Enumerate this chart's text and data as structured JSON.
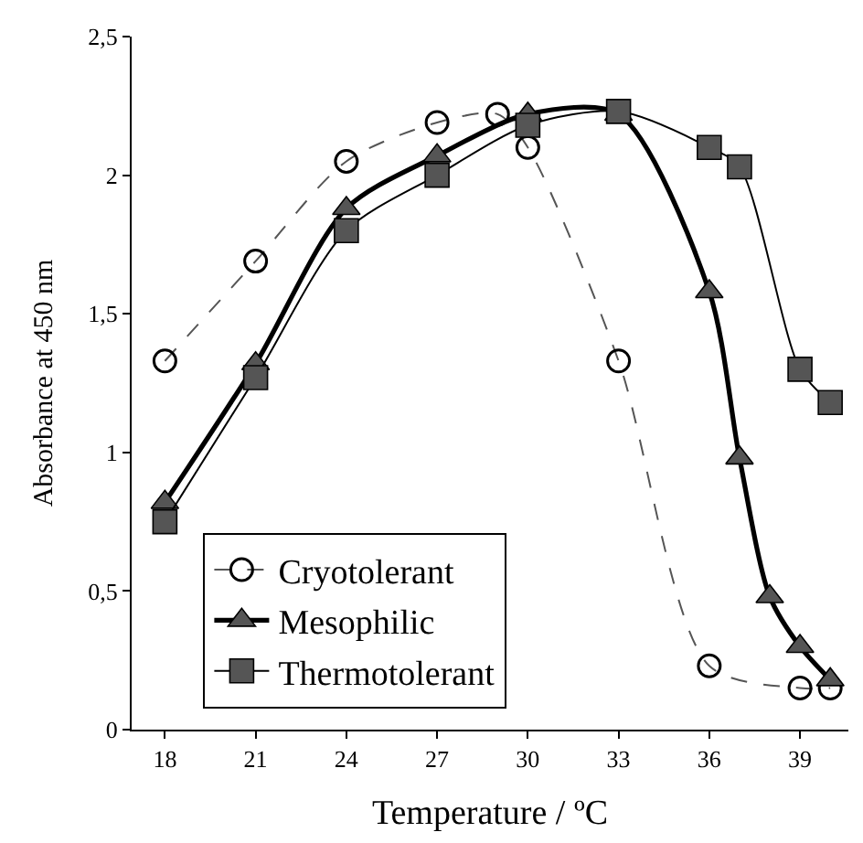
{
  "chart_data": {
    "type": "line",
    "xlabel": "Temperature / ºC",
    "ylabel": "Absorbance at 450 nm",
    "xlim": [
      16.9,
      40.6
    ],
    "xticks": [
      18,
      21,
      24,
      27,
      30,
      33,
      36,
      39
    ],
    "ylim": [
      0,
      2.5
    ],
    "yticks": [
      0,
      {
        "value": 0.5,
        "label": "0,5"
      },
      1,
      {
        "value": 1.5,
        "label": "1,5"
      },
      2,
      {
        "value": 2.5,
        "label": "2,5"
      }
    ],
    "legend": "bottom left",
    "series": [
      {
        "name": "Cryotolerant",
        "color": "#000000",
        "marker": "circle",
        "line_style": "dashed",
        "x": [
          18,
          21,
          24,
          27,
          29,
          30,
          33,
          36,
          39,
          40
        ],
        "values": [
          1.33,
          1.69,
          2.05,
          2.19,
          2.22,
          2.1,
          1.33,
          0.23,
          0.15,
          0.15
        ]
      },
      {
        "name": "Mesophilic",
        "color": "#555555",
        "marker": "triangle",
        "line_style": "solid",
        "x": [
          18,
          21,
          24,
          27,
          30,
          33,
          36,
          37,
          38,
          39,
          40
        ],
        "values": [
          0.82,
          1.32,
          1.88,
          2.07,
          2.22,
          2.22,
          1.58,
          0.98,
          0.48,
          0.3,
          0.18
        ]
      },
      {
        "name": "Thermotolerant",
        "color": "#555555",
        "marker": "square",
        "line_style": "solid",
        "x": [
          18,
          21,
          24,
          27,
          30,
          33,
          36,
          37,
          39,
          40
        ],
        "values": [
          0.75,
          1.27,
          1.8,
          2.0,
          2.18,
          2.23,
          2.1,
          2.03,
          1.3,
          1.18
        ]
      }
    ]
  }
}
